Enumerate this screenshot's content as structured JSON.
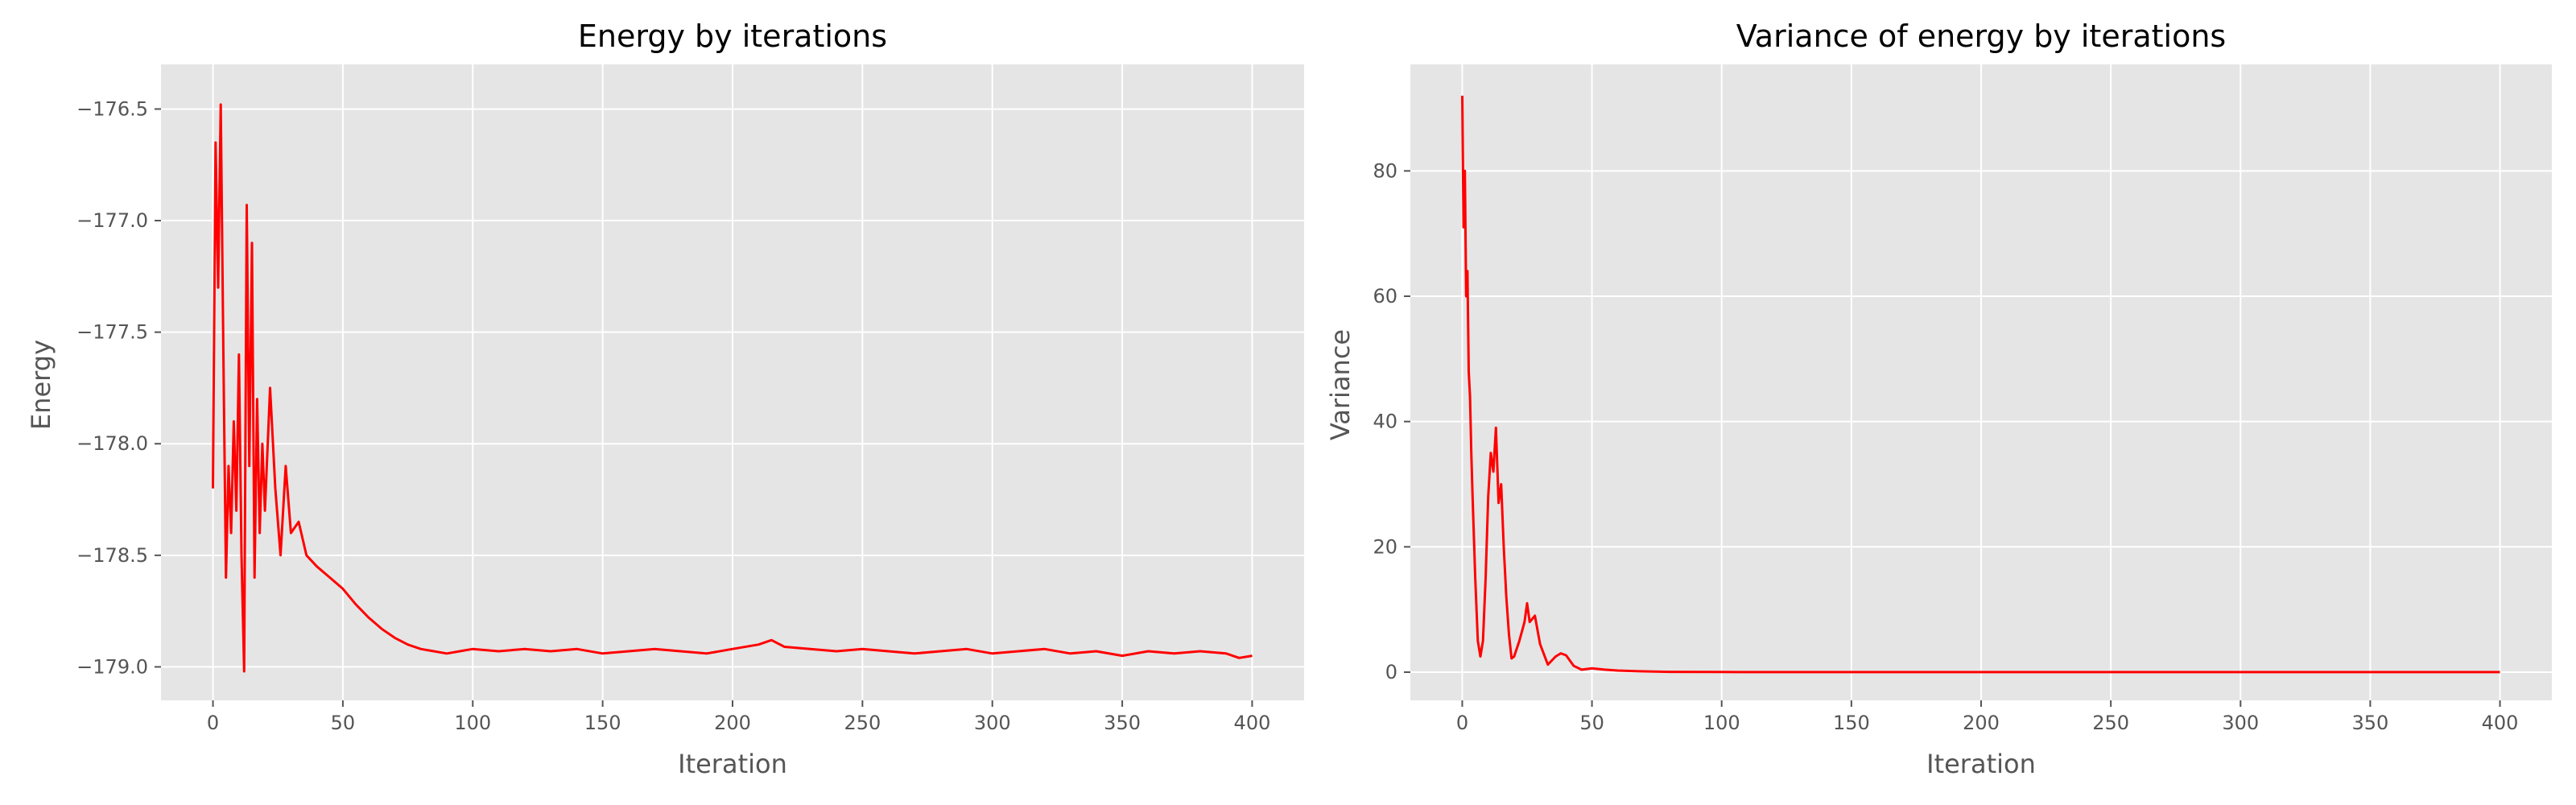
{
  "chart_data": [
    {
      "type": "line",
      "title": "Energy by iterations",
      "xlabel": "Iteration",
      "ylabel": "Energy",
      "xlim": [
        -20,
        420
      ],
      "ylim": [
        -179.15,
        -176.3
      ],
      "xticks": [
        0,
        50,
        100,
        150,
        200,
        250,
        300,
        350,
        400
      ],
      "yticks": [
        -176.5,
        -177.0,
        -177.5,
        -178.0,
        -178.5,
        -179.0
      ],
      "ytick_labels": [
        "−176.5",
        "−177.0",
        "−177.5",
        "−178.0",
        "−178.5",
        "−179.0"
      ],
      "grid": true,
      "series": [
        {
          "name": "Energy",
          "color": "#ff0000",
          "x": [
            0,
            1,
            2,
            3,
            4,
            5,
            6,
            7,
            8,
            9,
            10,
            11,
            12,
            13,
            14,
            15,
            16,
            17,
            18,
            19,
            20,
            22,
            24,
            26,
            28,
            30,
            33,
            36,
            40,
            45,
            50,
            55,
            60,
            65,
            70,
            75,
            80,
            85,
            90,
            95,
            100,
            110,
            120,
            130,
            140,
            150,
            160,
            170,
            180,
            190,
            200,
            210,
            215,
            220,
            230,
            240,
            250,
            260,
            270,
            280,
            290,
            300,
            310,
            320,
            330,
            340,
            350,
            360,
            370,
            380,
            390,
            395,
            400
          ],
          "values": [
            -178.2,
            -176.65,
            -177.3,
            -176.48,
            -177.6,
            -178.6,
            -178.1,
            -178.4,
            -177.9,
            -178.3,
            -177.6,
            -178.5,
            -179.02,
            -176.93,
            -178.1,
            -177.1,
            -178.6,
            -177.8,
            -178.4,
            -178.0,
            -178.3,
            -177.75,
            -178.2,
            -178.5,
            -178.1,
            -178.4,
            -178.35,
            -178.5,
            -178.55,
            -178.6,
            -178.65,
            -178.72,
            -178.78,
            -178.83,
            -178.87,
            -178.9,
            -178.92,
            -178.93,
            -178.94,
            -178.93,
            -178.92,
            -178.93,
            -178.92,
            -178.93,
            -178.92,
            -178.94,
            -178.93,
            -178.92,
            -178.93,
            -178.94,
            -178.92,
            -178.9,
            -178.88,
            -178.91,
            -178.92,
            -178.93,
            -178.92,
            -178.93,
            -178.94,
            -178.93,
            -178.92,
            -178.94,
            -178.93,
            -178.92,
            -178.94,
            -178.93,
            -178.95,
            -178.93,
            -178.94,
            -178.93,
            -178.94,
            -178.96,
            -178.95
          ]
        }
      ]
    },
    {
      "type": "line",
      "title": "Variance of energy by iterations",
      "xlabel": "Iteration",
      "ylabel": "Variance",
      "xlim": [
        -20,
        420
      ],
      "ylim": [
        -4.5,
        97
      ],
      "xticks": [
        0,
        50,
        100,
        150,
        200,
        250,
        300,
        350,
        400
      ],
      "yticks": [
        0,
        20,
        40,
        60,
        80
      ],
      "ytick_labels": [
        "0",
        "20",
        "40",
        "60",
        "80"
      ],
      "grid": true,
      "series": [
        {
          "name": "Variance",
          "color": "#ff0000",
          "x": [
            0,
            0.5,
            1,
            1.5,
            2,
            2.5,
            3,
            3.5,
            4,
            5,
            6,
            7,
            8,
            9,
            10,
            11,
            12,
            13,
            14,
            15,
            16,
            17,
            18,
            19,
            20,
            22,
            24,
            25,
            26,
            28,
            30,
            33,
            36,
            38,
            40,
            43,
            46,
            50,
            55,
            60,
            70,
            80,
            100,
            150,
            200,
            250,
            300,
            350,
            400
          ],
          "values": [
            92,
            71,
            80,
            60,
            64,
            48,
            44,
            35,
            28,
            15,
            5,
            2.5,
            5,
            15,
            28,
            35,
            32,
            39,
            27,
            30,
            20,
            12,
            6,
            2.2,
            2.5,
            5,
            8,
            11,
            8,
            9,
            4.5,
            1.2,
            2.5,
            3,
            2.7,
            1,
            0.4,
            0.6,
            0.4,
            0.25,
            0.12,
            0.05,
            0.02,
            0.01,
            0.01,
            0.01,
            0.01,
            0.01,
            0.01
          ]
        }
      ]
    }
  ]
}
